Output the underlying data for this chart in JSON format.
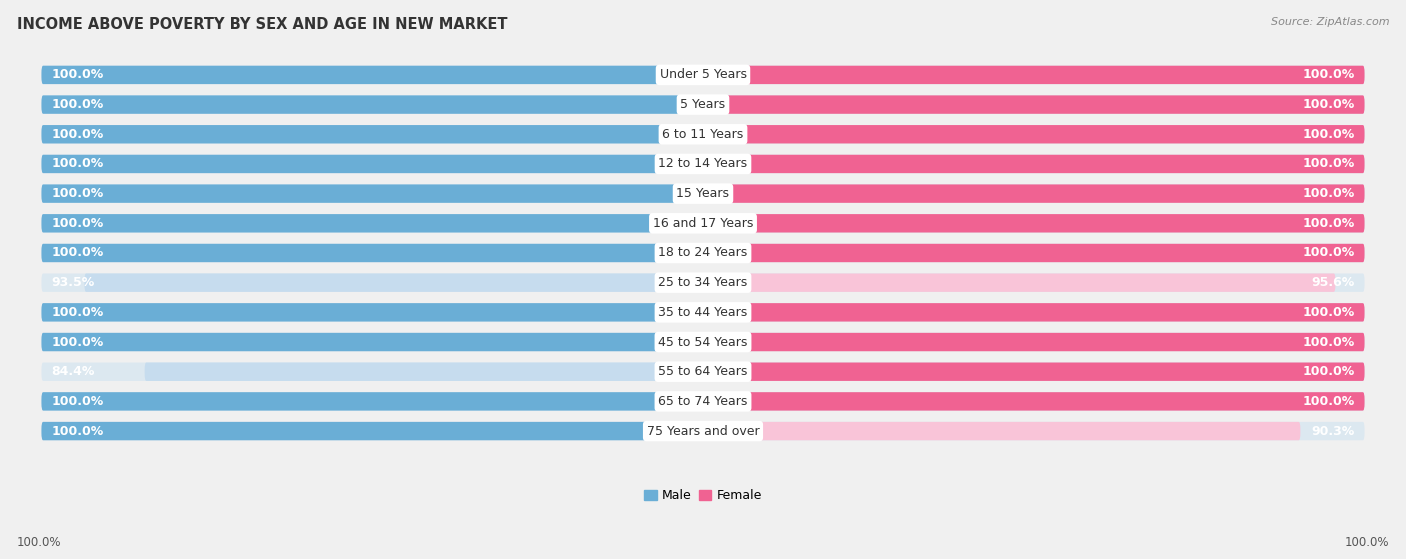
{
  "title": "INCOME ABOVE POVERTY BY SEX AND AGE IN NEW MARKET",
  "source": "Source: ZipAtlas.com",
  "categories": [
    "Under 5 Years",
    "5 Years",
    "6 to 11 Years",
    "12 to 14 Years",
    "15 Years",
    "16 and 17 Years",
    "18 to 24 Years",
    "25 to 34 Years",
    "35 to 44 Years",
    "45 to 54 Years",
    "55 to 64 Years",
    "65 to 74 Years",
    "75 Years and over"
  ],
  "male_values": [
    100.0,
    100.0,
    100.0,
    100.0,
    100.0,
    100.0,
    100.0,
    93.5,
    100.0,
    100.0,
    84.4,
    100.0,
    100.0
  ],
  "female_values": [
    100.0,
    100.0,
    100.0,
    100.0,
    100.0,
    100.0,
    100.0,
    95.6,
    100.0,
    100.0,
    100.0,
    100.0,
    90.3
  ],
  "male_color": "#6aaed6",
  "female_color": "#f06292",
  "male_light_color": "#c6dcee",
  "female_light_color": "#f9c4d8",
  "bg_color": "#f0f0f0",
  "bar_bg_color": "#dce8f0",
  "max_value": 100.0,
  "bar_height": 0.62,
  "title_fontsize": 10.5,
  "label_fontsize": 9,
  "category_fontsize": 9,
  "legend_fontsize": 9,
  "source_fontsize": 8
}
